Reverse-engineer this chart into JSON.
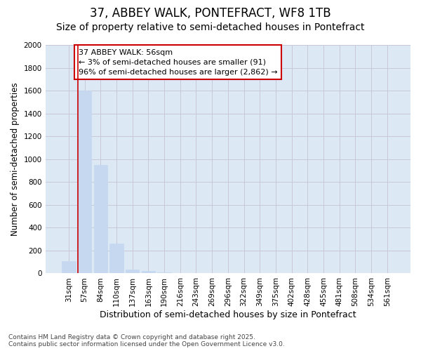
{
  "title": "37, ABBEY WALK, PONTEFRACT, WF8 1TB",
  "subtitle": "Size of property relative to semi-detached houses in Pontefract",
  "xlabel": "Distribution of semi-detached houses by size in Pontefract",
  "ylabel": "Number of semi-detached properties",
  "categories": [
    "31sqm",
    "57sqm",
    "84sqm",
    "110sqm",
    "137sqm",
    "163sqm",
    "190sqm",
    "216sqm",
    "243sqm",
    "269sqm",
    "296sqm",
    "322sqm",
    "349sqm",
    "375sqm",
    "402sqm",
    "428sqm",
    "455sqm",
    "481sqm",
    "508sqm",
    "534sqm",
    "561sqm"
  ],
  "values": [
    110,
    1600,
    950,
    260,
    35,
    20,
    10,
    0,
    0,
    0,
    0,
    0,
    0,
    0,
    0,
    0,
    0,
    0,
    0,
    0,
    0
  ],
  "bar_color": "#c5d8f0",
  "bar_edge_color": "#c5d8f0",
  "grid_color": "#c8c8d8",
  "plot_bg_color": "#dde8f5",
  "fig_bg_color": "#ffffff",
  "vline_x_idx": 1,
  "vline_color": "#cc0000",
  "annotation_text": "37 ABBEY WALK: 56sqm\n← 3% of semi-detached houses are smaller (91)\n96% of semi-detached houses are larger (2,862) →",
  "annotation_box_facecolor": "#ffffff",
  "annotation_box_edgecolor": "#cc0000",
  "ylim": [
    0,
    2000
  ],
  "yticks": [
    0,
    200,
    400,
    600,
    800,
    1000,
    1200,
    1400,
    1600,
    1800,
    2000
  ],
  "footer": "Contains HM Land Registry data © Crown copyright and database right 2025.\nContains public sector information licensed under the Open Government Licence v3.0.",
  "title_fontsize": 12,
  "subtitle_fontsize": 10,
  "tick_fontsize": 7.5,
  "ylabel_fontsize": 8.5,
  "xlabel_fontsize": 9,
  "annotation_fontsize": 8,
  "footer_fontsize": 6.5
}
